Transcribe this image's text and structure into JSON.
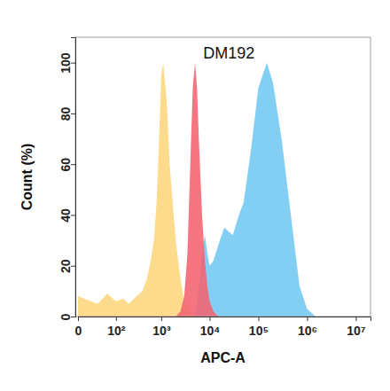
{
  "chart_data": {
    "type": "area",
    "title": "DM192",
    "x_label": "APC-A",
    "y_label": "Count (%)",
    "log": "x",
    "grid": false,
    "x": [
      0,
      30,
      60,
      100,
      150,
      200,
      300,
      400,
      500,
      600,
      700,
      800,
      900,
      1000,
      1100,
      1300,
      1500,
      2000,
      2500,
      3000,
      3500,
      4000,
      4500,
      5000,
      5500,
      6000,
      7000,
      8000,
      9000,
      10000,
      12000,
      15000,
      20000,
      30000,
      40000,
      50000,
      70000,
      100000,
      150000,
      200000,
      300000,
      500000,
      700000,
      1000000,
      1500000
    ],
    "series": [
      {
        "color": "#fdd67c",
        "values": [
          8,
          5,
          9,
          6,
          7,
          5,
          8,
          10,
          15,
          22,
          30,
          45,
          70,
          95,
          100,
          85,
          60,
          30,
          15,
          6,
          4,
          2,
          1,
          0.5,
          0,
          null,
          null,
          null,
          null,
          null,
          null,
          null,
          null,
          null,
          null,
          null,
          null,
          null,
          null,
          null,
          null,
          null,
          null,
          null,
          null
        ]
      },
      {
        "color": "#72c8f2",
        "values": [
          null,
          null,
          null,
          null,
          null,
          null,
          null,
          null,
          null,
          null,
          null,
          null,
          null,
          null,
          null,
          null,
          null,
          null,
          null,
          null,
          null,
          null,
          null,
          0,
          5,
          12,
          25,
          32,
          25,
          20,
          22,
          28,
          35,
          32,
          40,
          45,
          65,
          90,
          100,
          92,
          70,
          35,
          12,
          3,
          0
        ]
      },
      {
        "color": "#f4636f",
        "values": [
          null,
          null,
          null,
          null,
          null,
          null,
          null,
          null,
          null,
          null,
          null,
          null,
          null,
          null,
          null,
          null,
          null,
          0,
          2,
          8,
          25,
          60,
          90,
          100,
          90,
          70,
          40,
          22,
          12,
          6,
          2,
          0,
          null,
          null,
          null,
          null,
          null,
          null,
          null,
          null,
          null,
          null,
          null,
          null,
          null
        ]
      }
    ],
    "xlim": [
      0,
      20000000
    ],
    "xticks": [
      0,
      {
        "value": 100,
        "label": "10²"
      },
      {
        "value": 1000,
        "label": "10³"
      },
      {
        "value": 10000,
        "label": "10⁴"
      },
      {
        "value": 100000,
        "label": "10⁵"
      },
      {
        "value": 1000000,
        "label": "10⁶"
      },
      {
        "value": 10000000,
        "label": "10⁷"
      }
    ],
    "ylim": [
      0,
      110
    ],
    "yticks": [
      0,
      20,
      40,
      60,
      80,
      100
    ]
  }
}
